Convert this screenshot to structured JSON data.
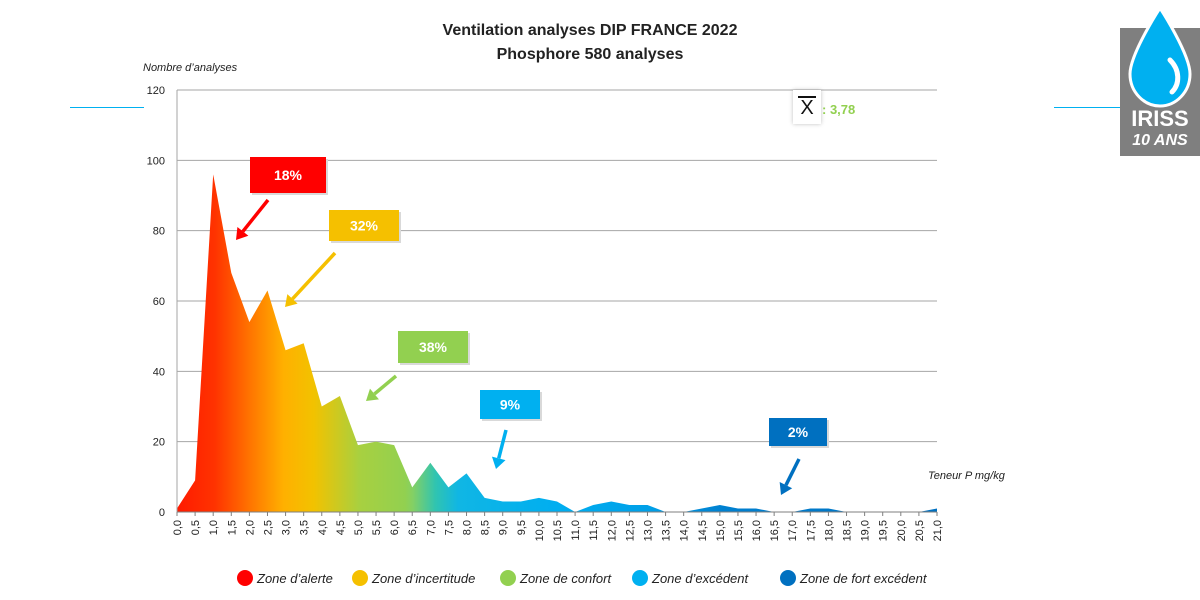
{
  "chart_data": {
    "type": "area",
    "title": "Ventilation analyses DIP FRANCE 2022",
    "subtitle": "Phosphore 580 analyses",
    "ylabel": "Nombre d’analyses",
    "xlabel": "Teneur P mg/kg",
    "ylim": [
      0,
      120
    ],
    "yticks": [
      0,
      20,
      40,
      60,
      80,
      100,
      120
    ],
    "grid": true,
    "x": [
      0.0,
      0.5,
      1.0,
      1.5,
      2.0,
      2.5,
      3.0,
      3.5,
      4.0,
      4.5,
      5.0,
      5.5,
      6.0,
      6.5,
      7.0,
      7.5,
      8.0,
      8.5,
      9.0,
      9.5,
      10.0,
      10.5,
      11.0,
      11.5,
      12.0,
      12.5,
      13.0,
      13.5,
      14.0,
      14.5,
      15.0,
      15.5,
      16.0,
      16.5,
      17.0,
      17.5,
      18.0,
      18.5,
      19.0,
      19.5,
      20.0,
      20.5,
      21.0
    ],
    "x_tick_labels": [
      "0,0",
      "0,5",
      "1,0",
      "1,5",
      "2,0",
      "2,5",
      "3,0",
      "3,5",
      "4,0",
      "4,5",
      "5,0",
      "5,5",
      "6,0",
      "6,5",
      "7,0",
      "7,5",
      "8,0",
      "8,5",
      "9,0",
      "9,5",
      "10,0",
      "10,5",
      "11,0",
      "11,5",
      "12,0",
      "12,5",
      "13,0",
      "13,5",
      "14,0",
      "14,5",
      "15,0",
      "15,5",
      "16,0",
      "16,5",
      "17,0",
      "17,5",
      "18,0",
      "18,5",
      "19,0",
      "19,5",
      "20,0",
      "20,5",
      "21,0"
    ],
    "values": [
      1,
      9,
      96,
      68,
      54,
      63,
      46,
      48,
      30,
      33,
      19,
      20,
      19,
      7,
      14,
      7,
      11,
      4,
      3,
      3,
      4,
      3,
      0,
      2,
      3,
      2,
      2,
      0,
      0,
      1,
      2,
      1,
      1,
      0,
      0,
      1,
      1,
      0,
      0,
      0,
      0,
      0,
      1
    ],
    "zones": [
      {
        "name": "Zone d’alerte",
        "percent": "18%",
        "color": "#ff0000"
      },
      {
        "name": "Zone d’incertitude",
        "percent": "32%",
        "color": "#f5c000"
      },
      {
        "name": "Zone de confort",
        "percent": "38%",
        "color": "#92d050"
      },
      {
        "name": "Zone d’excédent",
        "percent": "9%",
        "color": "#00b0f0"
      },
      {
        "name": "Zone de fort excédent",
        "percent": "2%",
        "color": "#0070c0"
      }
    ],
    "mean": {
      "symbol": "X",
      "label": ": 3,78"
    }
  },
  "logo": {
    "name": "IRISS",
    "sub": "10 ANS"
  }
}
